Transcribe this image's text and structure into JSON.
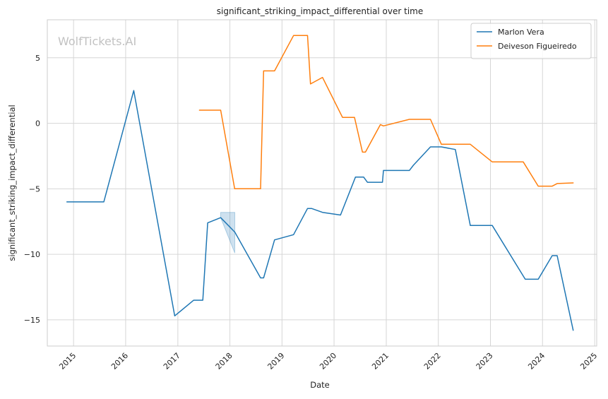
{
  "chart_data": {
    "type": "line",
    "title": "significant_striking_impact_differential over time",
    "xlabel": "Date",
    "ylabel": "significant_striking_impact_differential",
    "watermark": "WolfTickets.AI",
    "x_type": "date",
    "xlim": [
      "2014-07-01",
      "2025-01-15"
    ],
    "ylim": [
      -17,
      7.9
    ],
    "x_ticks": [
      "2015-01-01",
      "2016-01-01",
      "2017-01-01",
      "2018-01-01",
      "2019-01-01",
      "2020-01-01",
      "2021-01-01",
      "2022-01-01",
      "2023-01-01",
      "2024-01-01",
      "2025-01-01"
    ],
    "x_tick_labels": [
      "2015",
      "2016",
      "2017",
      "2018",
      "2019",
      "2020",
      "2021",
      "2022",
      "2023",
      "2024",
      "2025"
    ],
    "y_ticks": [
      -15,
      -10,
      -5,
      0,
      5
    ],
    "y_tick_labels": [
      "−15",
      "−10",
      "−5",
      "0",
      "5"
    ],
    "grid": true,
    "legend_position": "top-right",
    "series": [
      {
        "name": "Marlon Vera",
        "color": "#1f77b4",
        "points": [
          [
            "2014-11-15",
            -6.0
          ],
          [
            "2015-08-01",
            -6.0
          ],
          [
            "2016-02-27",
            2.5
          ],
          [
            "2016-12-10",
            -14.7
          ],
          [
            "2017-04-22",
            -13.5
          ],
          [
            "2017-06-25",
            -13.5
          ],
          [
            "2017-07-29",
            -7.6
          ],
          [
            "2017-10-28",
            -7.2
          ],
          [
            "2018-02-04",
            -8.3
          ],
          [
            "2018-08-04",
            -11.8
          ],
          [
            "2018-08-25",
            -11.8
          ],
          [
            "2018-11-10",
            -8.9
          ],
          [
            "2019-03-23",
            -8.5
          ],
          [
            "2019-06-29",
            -6.5
          ],
          [
            "2019-07-27",
            -6.5
          ],
          [
            "2019-10-12",
            -6.8
          ],
          [
            "2020-02-15",
            -7.0
          ],
          [
            "2020-05-30",
            -4.1
          ],
          [
            "2020-07-26",
            -4.1
          ],
          [
            "2020-08-22",
            -4.5
          ],
          [
            "2020-12-05",
            -4.5
          ],
          [
            "2020-12-12",
            -3.6
          ],
          [
            "2021-06-12",
            -3.6
          ],
          [
            "2021-07-10",
            -3.2
          ],
          [
            "2021-11-07",
            -1.8
          ],
          [
            "2022-01-22",
            -1.8
          ],
          [
            "2022-04-30",
            -2.0
          ],
          [
            "2022-08-13",
            -7.8
          ],
          [
            "2023-01-14",
            -7.8
          ],
          [
            "2023-09-02",
            -11.9
          ],
          [
            "2023-12-02",
            -11.9
          ],
          [
            "2024-03-09",
            -10.1
          ],
          [
            "2024-04-13",
            -10.1
          ],
          [
            "2024-08-03",
            -15.8
          ]
        ],
        "band": [
          [
            "2017-10-28",
            -6.8,
            -7.2
          ],
          [
            "2018-02-04",
            -6.8,
            -9.9
          ]
        ]
      },
      {
        "name": "Deiveson Figueiredo",
        "color": "#ff7f0e",
        "points": [
          [
            "2017-06-01",
            1.0
          ],
          [
            "2017-10-28",
            1.0
          ],
          [
            "2018-02-03",
            -5.0
          ],
          [
            "2018-08-04",
            -5.0
          ],
          [
            "2018-08-25",
            4.0
          ],
          [
            "2018-11-10",
            4.0
          ],
          [
            "2019-03-23",
            6.7
          ],
          [
            "2019-06-29",
            6.7
          ],
          [
            "2019-07-20",
            3.0
          ],
          [
            "2019-10-12",
            3.5
          ],
          [
            "2020-02-29",
            0.45
          ],
          [
            "2020-05-23",
            0.45
          ],
          [
            "2020-07-18",
            -2.2
          ],
          [
            "2020-08-08",
            -2.2
          ],
          [
            "2020-11-21",
            -0.1
          ],
          [
            "2020-12-12",
            -0.2
          ],
          [
            "2021-06-12",
            0.3
          ],
          [
            "2021-11-07",
            0.3
          ],
          [
            "2022-01-22",
            -1.6
          ],
          [
            "2022-08-13",
            -1.6
          ],
          [
            "2023-01-14",
            -2.95
          ],
          [
            "2023-08-19",
            -2.95
          ],
          [
            "2023-12-02",
            -4.8
          ],
          [
            "2024-03-09",
            -4.8
          ],
          [
            "2024-04-13",
            -4.6
          ],
          [
            "2024-08-03",
            -4.55
          ]
        ]
      }
    ]
  }
}
